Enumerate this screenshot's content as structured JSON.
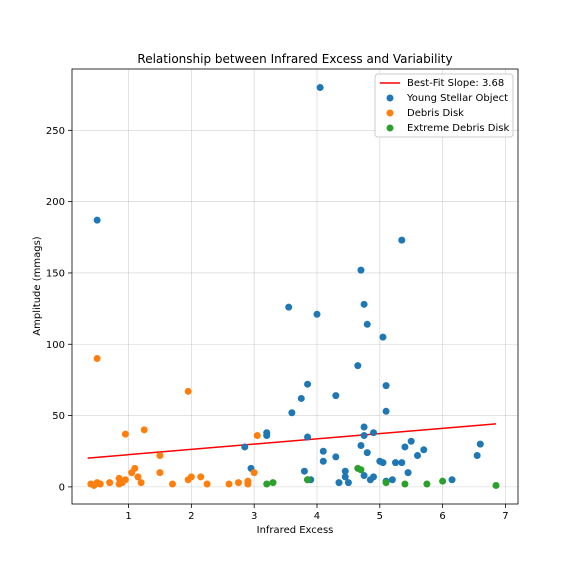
{
  "chart_data": {
    "type": "scatter",
    "title": "Relationship between Infrared Excess and Variability",
    "xlabel": "Infrared Excess",
    "ylabel": "Amplitude (mmags)",
    "xlim": [
      0.1,
      7.2
    ],
    "ylim": [
      -12,
      293
    ],
    "xticks": [
      1,
      2,
      3,
      4,
      5,
      6,
      7
    ],
    "yticks": [
      0,
      50,
      100,
      150,
      200,
      250
    ],
    "grid": true,
    "legend_position": "top-right",
    "fit_line": {
      "label": "Best-Fit Slope: 3.68",
      "color": "#ff0000",
      "x": [
        0.35,
        6.85
      ],
      "y": [
        20.2,
        44.2
      ]
    },
    "series": [
      {
        "name": "Young Stellar Object",
        "color": "#1f77b4",
        "points": [
          [
            0.5,
            187
          ],
          [
            4.05,
            280
          ],
          [
            5.35,
            173
          ],
          [
            4.7,
            152
          ],
          [
            4.75,
            128
          ],
          [
            3.55,
            126
          ],
          [
            4.0,
            121
          ],
          [
            4.8,
            114
          ],
          [
            5.05,
            105
          ],
          [
            4.65,
            85
          ],
          [
            3.85,
            72
          ],
          [
            5.1,
            71
          ],
          [
            4.3,
            64
          ],
          [
            3.75,
            62
          ],
          [
            3.6,
            52
          ],
          [
            5.1,
            53
          ],
          [
            4.75,
            42
          ],
          [
            4.9,
            38
          ],
          [
            4.75,
            36
          ],
          [
            3.2,
            38
          ],
          [
            3.2,
            36
          ],
          [
            3.85,
            35
          ],
          [
            5.5,
            32
          ],
          [
            5.4,
            28
          ],
          [
            4.7,
            29
          ],
          [
            2.85,
            28
          ],
          [
            5.7,
            26
          ],
          [
            4.1,
            25
          ],
          [
            4.8,
            24
          ],
          [
            6.6,
            30
          ],
          [
            5.6,
            22
          ],
          [
            6.55,
            22
          ],
          [
            4.3,
            21
          ],
          [
            4.1,
            18
          ],
          [
            5.0,
            18
          ],
          [
            5.05,
            17
          ],
          [
            5.25,
            17
          ],
          [
            5.35,
            17
          ],
          [
            2.95,
            13
          ],
          [
            3.8,
            11
          ],
          [
            4.45,
            11
          ],
          [
            5.45,
            10
          ],
          [
            4.75,
            8
          ],
          [
            4.45,
            7
          ],
          [
            4.9,
            7
          ],
          [
            4.85,
            5
          ],
          [
            3.85,
            5
          ],
          [
            3.9,
            5
          ],
          [
            4.35,
            3
          ],
          [
            4.5,
            3
          ],
          [
            5.1,
            4
          ],
          [
            5.2,
            5
          ],
          [
            6.15,
            5
          ]
        ]
      },
      {
        "name": "Debris Disk",
        "color": "#ff7f0e",
        "points": [
          [
            0.5,
            90
          ],
          [
            1.95,
            67
          ],
          [
            1.25,
            40
          ],
          [
            0.95,
            37
          ],
          [
            3.05,
            36
          ],
          [
            1.5,
            22
          ],
          [
            1.1,
            13
          ],
          [
            1.05,
            10
          ],
          [
            1.5,
            10
          ],
          [
            3.0,
            10
          ],
          [
            1.15,
            7
          ],
          [
            0.85,
            6
          ],
          [
            0.95,
            5
          ],
          [
            2.0,
            7
          ],
          [
            2.15,
            7
          ],
          [
            1.95,
            5
          ],
          [
            0.7,
            3
          ],
          [
            0.5,
            3
          ],
          [
            0.55,
            2
          ],
          [
            0.4,
            2
          ],
          [
            0.45,
            1
          ],
          [
            0.85,
            2
          ],
          [
            0.9,
            3
          ],
          [
            1.2,
            3
          ],
          [
            1.7,
            2
          ],
          [
            2.25,
            2
          ],
          [
            2.6,
            2
          ],
          [
            2.75,
            3
          ],
          [
            2.9,
            2
          ],
          [
            2.9,
            4
          ]
        ]
      },
      {
        "name": "Extreme Debris Disk",
        "color": "#2ca02c",
        "points": [
          [
            4.65,
            13
          ],
          [
            4.7,
            12
          ],
          [
            3.2,
            2
          ],
          [
            3.3,
            3
          ],
          [
            3.85,
            5
          ],
          [
            5.1,
            3
          ],
          [
            5.4,
            2
          ],
          [
            5.75,
            2
          ],
          [
            6.0,
            4
          ],
          [
            6.85,
            1
          ]
        ]
      }
    ]
  }
}
